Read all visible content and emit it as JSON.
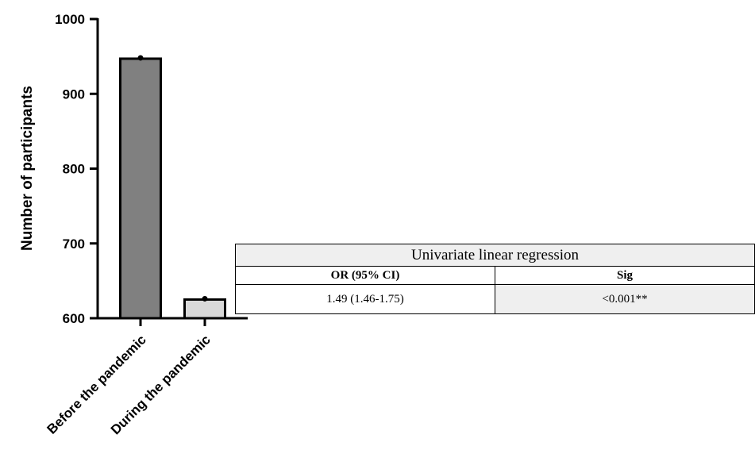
{
  "chart_data": {
    "type": "bar",
    "categories": [
      "Before the pandemic",
      "During the pandemic"
    ],
    "values": [
      947,
      625
    ],
    "title": "",
    "xlabel": "",
    "ylabel": "Number of participants",
    "ylim": [
      600,
      1000
    ],
    "yticks": [
      600,
      700,
      800,
      900,
      1000
    ],
    "bar_colors": [
      "#808080",
      "#d9d9d9"
    ],
    "grid": false
  },
  "stats_table": {
    "title": "Univariate linear regression",
    "headers": [
      "OR (95% CI)",
      "Sig"
    ],
    "values": [
      "1.49 (1.46-1.75)",
      "<0.001**"
    ]
  }
}
